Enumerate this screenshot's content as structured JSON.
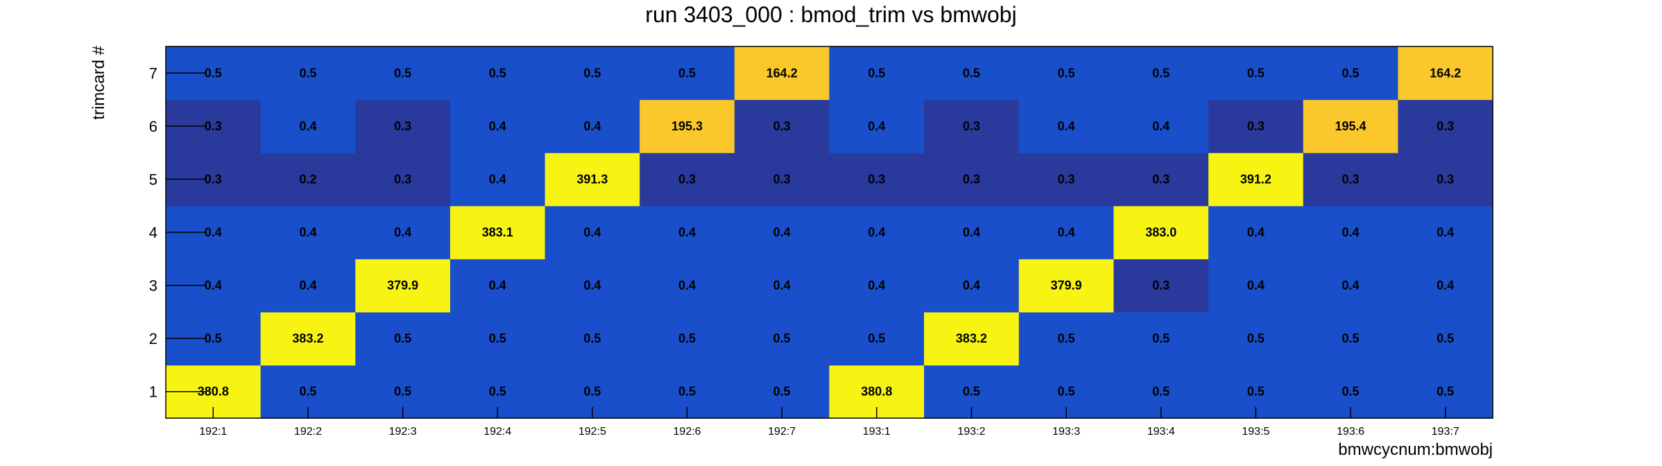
{
  "chart_data": {
    "type": "heatmap",
    "title": "run 3403_000 : bmod_trim vs bmwobj",
    "xlabel": "bmwcycnum:bmwobj",
    "ylabel": "trimcard #",
    "x_categories": [
      "192:1",
      "192:2",
      "192:3",
      "192:4",
      "192:5",
      "192:6",
      "192:7",
      "193:1",
      "193:2",
      "193:3",
      "193:4",
      "193:5",
      "193:6",
      "193:7"
    ],
    "y_categories": [
      "1",
      "2",
      "3",
      "4",
      "5",
      "6",
      "7"
    ],
    "values": [
      [
        "380.8",
        "0.5",
        "0.5",
        "0.5",
        "0.5",
        "0.5",
        "0.5",
        "380.8",
        "0.5",
        "0.5",
        "0.5",
        "0.5",
        "0.5",
        "0.5"
      ],
      [
        "0.5",
        "383.2",
        "0.5",
        "0.5",
        "0.5",
        "0.5",
        "0.5",
        "0.5",
        "383.2",
        "0.5",
        "0.5",
        "0.5",
        "0.5",
        "0.5"
      ],
      [
        "0.4",
        "0.4",
        "379.9",
        "0.4",
        "0.4",
        "0.4",
        "0.4",
        "0.4",
        "0.4",
        "379.9",
        "0.3",
        "0.4",
        "0.4",
        "0.4"
      ],
      [
        "0.4",
        "0.4",
        "0.4",
        "383.1",
        "0.4",
        "0.4",
        "0.4",
        "0.4",
        "0.4",
        "0.4",
        "383.0",
        "0.4",
        "0.4",
        "0.4"
      ],
      [
        "0.3",
        "0.2",
        "0.3",
        "0.4",
        "391.3",
        "0.3",
        "0.3",
        "0.3",
        "0.3",
        "0.3",
        "0.3",
        "391.2",
        "0.3",
        "0.3"
      ],
      [
        "0.3",
        "0.4",
        "0.3",
        "0.4",
        "0.4",
        "195.3",
        "0.3",
        "0.4",
        "0.3",
        "0.4",
        "0.4",
        "0.3",
        "195.4",
        "0.3"
      ],
      [
        "0.5",
        "0.5",
        "0.5",
        "0.5",
        "0.5",
        "0.5",
        "164.2",
        "0.5",
        "0.5",
        "0.5",
        "0.5",
        "0.5",
        "0.5",
        "164.2"
      ]
    ],
    "grid": false,
    "legend": "none",
    "colors": {
      "low_deep": "#2a3a9c",
      "low": "#1a4fcb",
      "high": "#f7f414",
      "mid_high": "#fac82a"
    }
  }
}
